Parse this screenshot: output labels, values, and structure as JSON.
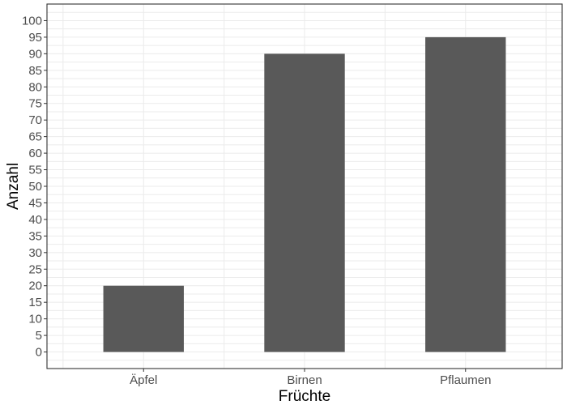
{
  "chart_data": {
    "type": "bar",
    "categories": [
      "Äpfel",
      "Birnen",
      "Pflaumen"
    ],
    "values": [
      20,
      90,
      95
    ],
    "xlabel": "Früchte",
    "ylabel": "Anzahl",
    "ylim": [
      -5,
      105
    ],
    "y_ticks": [
      0,
      5,
      10,
      15,
      20,
      25,
      30,
      35,
      40,
      45,
      50,
      55,
      60,
      65,
      70,
      75,
      80,
      85,
      90,
      95,
      100
    ],
    "grid": true,
    "legend": "none",
    "colors": {
      "bar": "#595959",
      "grid": "#ebebeb",
      "panel_border": "#333333",
      "tick_text": "#4d4d4d",
      "title_text": "#000000"
    }
  }
}
